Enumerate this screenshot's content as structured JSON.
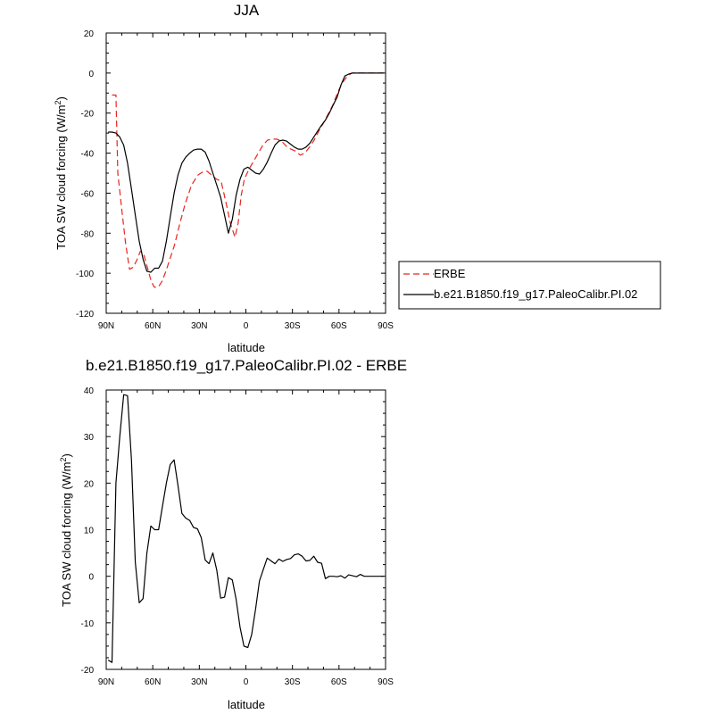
{
  "chart_data": [
    {
      "type": "line",
      "title": "JJA",
      "xlabel": "latitude",
      "ylabel": "TOA SW cloud forcing (W/m",
      "ylabel_sup": "2",
      "ylabel_end": ")",
      "xlim": [
        90,
        -90
      ],
      "ylim": [
        -120,
        20
      ],
      "xticks": [
        90,
        60,
        30,
        0,
        -30,
        -60,
        -90
      ],
      "xticklabels": [
        "90N",
        "60N",
        "30N",
        "0",
        "30S",
        "60S",
        "90S"
      ],
      "yticks": [
        -120,
        -100,
        -80,
        -60,
        -40,
        -20,
        0,
        20
      ],
      "yticklabels": [
        "-120",
        "-100",
        "-80",
        "-60",
        "-40",
        "-20",
        "0",
        "20"
      ],
      "legend": {
        "position": "right",
        "entries": [
          "ERBE",
          "b.e21.B1850.f19_g17.PaleoCalibr.PI.02"
        ]
      },
      "series": [
        {
          "name": "ERBE",
          "style": "dashed",
          "color": "#e8261e",
          "x": [
            86.25,
            83.75,
            82.5,
            80,
            77.5,
            75,
            72.5,
            70,
            68,
            66,
            63.5,
            61,
            59,
            56.5,
            54,
            51.5,
            49,
            46,
            42.5,
            39,
            35,
            31,
            28,
            25,
            22,
            19,
            16,
            13,
            10,
            7,
            5,
            3,
            1,
            -2,
            -5,
            -8,
            -11,
            -14,
            -17,
            -20,
            -23,
            -26,
            -29,
            -32,
            -35,
            -38,
            -41,
            -44,
            -47,
            -50,
            -53,
            -56,
            -59,
            -62,
            -65,
            -68,
            -70,
            -73,
            -76,
            -79,
            -82,
            -85,
            -88,
            -88.75
          ],
          "y": [
            -11,
            -11,
            -50,
            -68,
            -85,
            -98,
            -97,
            -93,
            -89,
            -90,
            -97,
            -104,
            -107,
            -107,
            -104,
            -99,
            -93,
            -86,
            -75,
            -65,
            -56,
            -51,
            -49.5,
            -49,
            -51,
            -53,
            -54,
            -64,
            -75,
            -82,
            -75,
            -61,
            -53,
            -48,
            -44,
            -40,
            -36,
            -33.5,
            -33,
            -33,
            -34,
            -36.5,
            -38,
            -39,
            -41,
            -40,
            -37,
            -33.5,
            -29,
            -25,
            -20.5,
            -16,
            -10,
            -5,
            -2,
            0,
            0,
            0,
            0,
            0,
            0,
            0,
            0,
            0
          ]
        },
        {
          "name": "b.e21.B1850.f19_g17.PaleoCalibr.PI.02",
          "style": "solid",
          "color": "#000000",
          "x": [
            88.75,
            86.25,
            83.75,
            81.25,
            78.75,
            76.25,
            73.75,
            71.25,
            68.75,
            66.25,
            63.75,
            61.25,
            58.75,
            56.25,
            53.75,
            51.25,
            48.75,
            46.25,
            43.75,
            41.25,
            38.75,
            36.25,
            33.75,
            31.25,
            28.75,
            26.25,
            23.75,
            21.25,
            18.75,
            16.25,
            13.75,
            11.25,
            8.75,
            6.25,
            3.75,
            1.25,
            -1.25,
            -3.75,
            -6.25,
            -8.75,
            -11.25,
            -13.75,
            -16.25,
            -18.75,
            -21.25,
            -23.75,
            -26.25,
            -28.75,
            -31.25,
            -33.75,
            -36.25,
            -38.75,
            -41.25,
            -43.75,
            -46.25,
            -48.75,
            -51.25,
            -53.75,
            -56.25,
            -58.75,
            -61.25,
            -63.75,
            -66.25,
            -68.75,
            -71.25,
            -73.75,
            -76.25,
            -78.75,
            -81.25,
            -83.75,
            -86.25,
            -88.75
          ],
          "y": [
            -29.5,
            -29.5,
            -30,
            -32,
            -36,
            -45,
            -58,
            -71,
            -84,
            -93,
            -99,
            -99.5,
            -97.5,
            -97.5,
            -94,
            -84,
            -72,
            -60,
            -51,
            -45,
            -42,
            -40,
            -38.5,
            -38,
            -38,
            -39.5,
            -44,
            -50,
            -56,
            -62,
            -71,
            -80,
            -73,
            -61,
            -53,
            -48,
            -47,
            -48.5,
            -50,
            -50.5,
            -48,
            -44.5,
            -40,
            -36,
            -34,
            -33.5,
            -34,
            -35.5,
            -37,
            -38,
            -38,
            -37,
            -35,
            -32,
            -29,
            -26,
            -23.5,
            -20,
            -16,
            -12,
            -6,
            -1.5,
            -0.5,
            0,
            0,
            0,
            0,
            0,
            0,
            0,
            0,
            0
          ]
        }
      ]
    },
    {
      "type": "line",
      "title": "b.e21.B1850.f19_g17.PaleoCalibr.PI.02 - ERBE",
      "xlabel": "latitude",
      "ylabel": "TOA SW cloud forcing (W/m",
      "ylabel_sup": "2",
      "ylabel_end": ")",
      "xlim": [
        90,
        -90
      ],
      "ylim": [
        -20,
        40
      ],
      "xticks": [
        90,
        60,
        30,
        0,
        -30,
        -60,
        -90
      ],
      "xticklabels": [
        "90N",
        "60N",
        "30N",
        "0",
        "30S",
        "60S",
        "90S"
      ],
      "yticks": [
        -20,
        -10,
        0,
        10,
        20,
        30,
        40
      ],
      "yticklabels": [
        "-20",
        "-10",
        "0",
        "10",
        "20",
        "30",
        "40"
      ],
      "series": [
        {
          "style": "solid",
          "color": "#000000",
          "x": [
            88.75,
            86.25,
            83.75,
            81.25,
            78.75,
            76.25,
            73.75,
            71.25,
            68.75,
            66.25,
            63.75,
            61.25,
            58.75,
            56.25,
            53.75,
            51.25,
            48.75,
            46.25,
            43.75,
            41.25,
            38.75,
            36.25,
            33.75,
            31.25,
            28.75,
            26.25,
            23.75,
            21.25,
            18.75,
            16.25,
            13.75,
            11.25,
            8.75,
            6.25,
            3.75,
            1.25,
            -1.25,
            -3.75,
            -6.25,
            -8.75,
            -11.25,
            -13.75,
            -16.25,
            -18.75,
            -21.25,
            -23.75,
            -26.25,
            -28.75,
            -31.25,
            -33.75,
            -36.25,
            -38.75,
            -41.25,
            -43.75,
            -46.25,
            -48.75,
            -51.25,
            -53.75,
            -56.25,
            -58.75,
            -61.25,
            -63.75,
            -66.25,
            -68.75,
            -71.25,
            -73.75,
            -76.25,
            -78.75,
            -81.25,
            -83.75,
            -86.25,
            -88.75
          ],
          "y": [
            -18,
            -18.5,
            20,
            30,
            39,
            38.8,
            25,
            3,
            -5.7,
            -4.8,
            5,
            10.8,
            10,
            10,
            15,
            20,
            24,
            25,
            19.5,
            13.5,
            12.5,
            12,
            10.5,
            10.2,
            8.3,
            3.5,
            2.7,
            5,
            1.3,
            -4.7,
            -4.5,
            -0.3,
            -0.8,
            -5,
            -11,
            -15,
            -15.3,
            -12.5,
            -7,
            -1,
            1.5,
            3.9,
            3.3,
            2.7,
            3.7,
            3.2,
            3.6,
            3.8,
            4.6,
            4.8,
            4.3,
            3.3,
            3.4,
            4.3,
            3,
            2.8,
            -0.5,
            0,
            0,
            -0.1,
            0.1,
            -0.4,
            0.3,
            0.1,
            -0.1,
            0.4,
            0,
            0,
            0,
            0,
            0,
            0
          ]
        }
      ]
    }
  ]
}
